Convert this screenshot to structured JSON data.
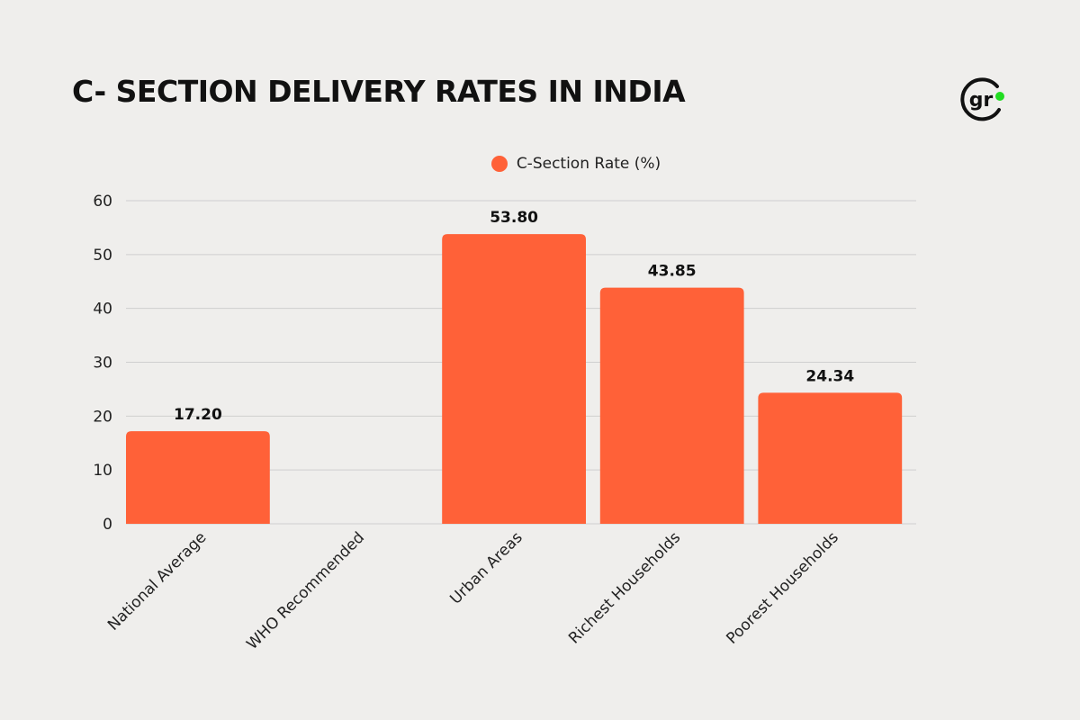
{
  "header": {
    "title": "C- SECTION DELIVERY RATES IN INDIA",
    "logo_text": "gr"
  },
  "colors": {
    "bar": "#ff6138",
    "logo_dot": "#22dd22",
    "grid": "#cfcfcf"
  },
  "chart_data": {
    "type": "bar",
    "title": "C- SECTION DELIVERY RATES IN INDIA",
    "categories": [
      "National Average",
      "WHO Recommended",
      "Urban Areas",
      "Richest Households",
      "Poorest Households"
    ],
    "series": [
      {
        "name": "C-Section Rate (%)",
        "values": [
          17.2,
          null,
          53.8,
          43.85,
          24.34
        ]
      }
    ],
    "value_labels": [
      "17.20",
      "",
      "53.80",
      "43.85",
      "24.34"
    ],
    "y_ticks": [
      "0",
      "10",
      "20",
      "30",
      "40",
      "50",
      "60"
    ],
    "ylim": [
      0,
      60
    ],
    "xlabel": "",
    "ylabel": "",
    "legend_position": "top-center",
    "grid": true
  }
}
